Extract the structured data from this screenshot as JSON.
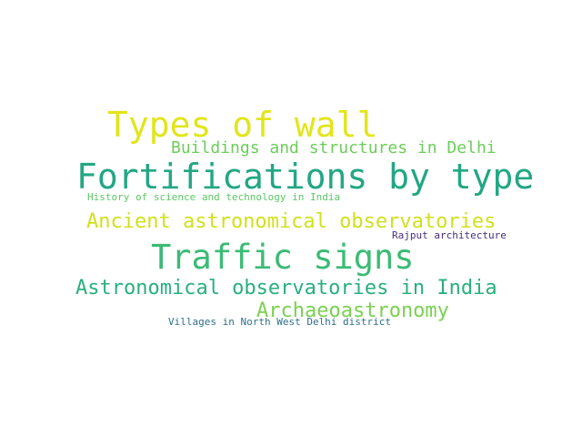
{
  "word_cloud": {
    "background": "#ffffff",
    "words": [
      {
        "text": "Types of wall",
        "color": "#e2e51b"
      },
      {
        "text": "Buildings and structures in Delhi",
        "color": "#6ccd5a"
      },
      {
        "text": "Fortifications by type",
        "color": "#22a784"
      },
      {
        "text": "History of science and technology in India",
        "color": "#5ac864"
      },
      {
        "text": "Ancient astronomical observatories",
        "color": "#d0e11c"
      },
      {
        "text": "Rajput architecture",
        "color": "#472d7b"
      },
      {
        "text": "Traffic signs",
        "color": "#3bbb75"
      },
      {
        "text": "Astronomical observatories in India",
        "color": "#29af7f"
      },
      {
        "text": "Archaeoastronomy",
        "color": "#7ad151"
      },
      {
        "text": "Villages in North West Delhi district",
        "color": "#2d708e"
      }
    ]
  }
}
